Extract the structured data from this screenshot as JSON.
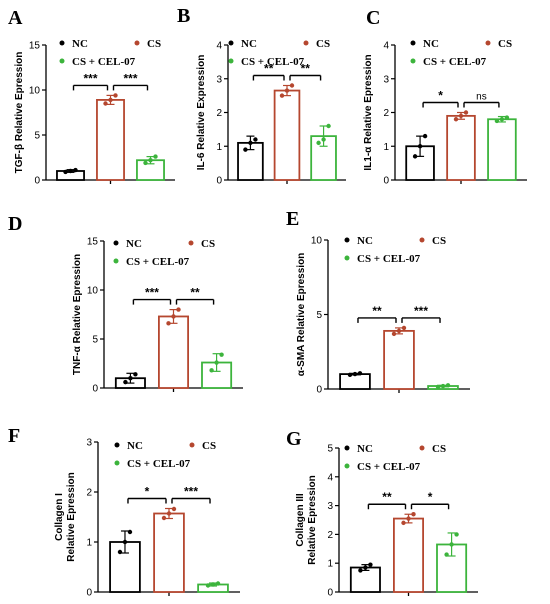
{
  "colors": {
    "NC": "#000000",
    "CS": "#b5472f",
    "CEL": "#3cb43c",
    "bar_fill": "#ffffff",
    "axis": "#000000"
  },
  "chart_data": [
    {
      "panel": "A",
      "type": "bar",
      "ylabel": "TGF-β Relative Epression",
      "ylim": [
        0,
        15
      ],
      "yticks": [
        0,
        5,
        10,
        15
      ],
      "legend": [
        "NC",
        "CS",
        "CS + CEL-07"
      ],
      "series": [
        {
          "name": "NC",
          "value": 1.0,
          "error": 0.15,
          "points": [
            0.9,
            1.0,
            1.1
          ]
        },
        {
          "name": "CS",
          "value": 8.9,
          "error": 0.5,
          "points": [
            8.5,
            8.9,
            9.4
          ]
        },
        {
          "name": "CS + CEL-07",
          "value": 2.2,
          "error": 0.4,
          "points": [
            1.9,
            2.2,
            2.6
          ]
        }
      ],
      "significance": [
        {
          "from": 0,
          "to": 1,
          "label": "***"
        },
        {
          "from": 1,
          "to": 2,
          "label": "***"
        }
      ]
    },
    {
      "panel": "B",
      "type": "bar",
      "ylabel": "IL-6 Relative Expression",
      "ylim": [
        0,
        4
      ],
      "yticks": [
        0,
        1,
        2,
        3,
        4
      ],
      "legend": [
        "NC",
        "CS",
        "CS + CEL-07"
      ],
      "series": [
        {
          "name": "NC",
          "value": 1.1,
          "error": 0.2,
          "points": [
            0.9,
            1.1,
            1.2
          ]
        },
        {
          "name": "CS",
          "value": 2.65,
          "error": 0.15,
          "points": [
            2.5,
            2.65,
            2.8
          ]
        },
        {
          "name": "CS + CEL-07",
          "value": 1.3,
          "error": 0.3,
          "points": [
            1.1,
            1.2,
            1.6
          ]
        }
      ],
      "significance": [
        {
          "from": 0,
          "to": 1,
          "label": "**"
        },
        {
          "from": 1,
          "to": 2,
          "label": "**"
        }
      ]
    },
    {
      "panel": "C",
      "type": "bar",
      "ylabel": "IL1-α Relative Epression",
      "ylim": [
        0,
        4
      ],
      "yticks": [
        0,
        1,
        2,
        3,
        4
      ],
      "legend": [
        "NC",
        "CS",
        "CS + CEL-07"
      ],
      "series": [
        {
          "name": "NC",
          "value": 1.0,
          "error": 0.3,
          "points": [
            0.7,
            1.0,
            1.3
          ]
        },
        {
          "name": "CS",
          "value": 1.9,
          "error": 0.1,
          "points": [
            1.8,
            1.9,
            2.0
          ]
        },
        {
          "name": "CS + CEL-07",
          "value": 1.8,
          "error": 0.08,
          "points": [
            1.75,
            1.8,
            1.85
          ]
        }
      ],
      "significance": [
        {
          "from": 0,
          "to": 1,
          "label": "*"
        },
        {
          "from": 1,
          "to": 2,
          "label": "ns"
        }
      ]
    },
    {
      "panel": "D",
      "type": "bar",
      "ylabel": "TNF-α Relative Epression",
      "ylim": [
        0,
        15
      ],
      "yticks": [
        0,
        5,
        10,
        15
      ],
      "legend": [
        "NC",
        "CS",
        "CS + CEL-07"
      ],
      "series": [
        {
          "name": "NC",
          "value": 1.0,
          "error": 0.5,
          "points": [
            0.6,
            1.0,
            1.4
          ]
        },
        {
          "name": "CS",
          "value": 7.3,
          "error": 0.7,
          "points": [
            6.6,
            7.3,
            8.0
          ]
        },
        {
          "name": "CS + CEL-07",
          "value": 2.6,
          "error": 0.9,
          "points": [
            1.8,
            2.6,
            3.4
          ]
        }
      ],
      "significance": [
        {
          "from": 0,
          "to": 1,
          "label": "***"
        },
        {
          "from": 1,
          "to": 2,
          "label": "**"
        }
      ]
    },
    {
      "panel": "E",
      "type": "bar",
      "ylabel": "α-SMA Relative Epression",
      "ylim": [
        0,
        10
      ],
      "yticks": [
        0,
        5,
        10
      ],
      "legend": [
        "NC",
        "CS",
        "CS + CEL-07"
      ],
      "series": [
        {
          "name": "NC",
          "value": 1.0,
          "error": 0.05,
          "points": [
            0.95,
            1.0,
            1.05
          ]
        },
        {
          "name": "CS",
          "value": 3.9,
          "error": 0.2,
          "points": [
            3.7,
            3.9,
            4.1
          ]
        },
        {
          "name": "CS + CEL-07",
          "value": 0.2,
          "error": 0.05,
          "points": [
            0.15,
            0.2,
            0.25
          ]
        }
      ],
      "significance": [
        {
          "from": 0,
          "to": 1,
          "label": "**"
        },
        {
          "from": 1,
          "to": 2,
          "label": "***"
        }
      ]
    },
    {
      "panel": "F",
      "type": "bar",
      "ylabel": "Collagen I Relative Epression",
      "ylim": [
        0,
        3
      ],
      "yticks": [
        0,
        1,
        2,
        3
      ],
      "legend": [
        "NC",
        "CS",
        "CS + CEL-07"
      ],
      "series": [
        {
          "name": "NC",
          "value": 1.0,
          "error": 0.22,
          "points": [
            0.8,
            1.0,
            1.2
          ]
        },
        {
          "name": "CS",
          "value": 1.57,
          "error": 0.1,
          "points": [
            1.48,
            1.57,
            1.66
          ]
        },
        {
          "name": "CS + CEL-07",
          "value": 0.15,
          "error": 0.03,
          "points": [
            0.13,
            0.15,
            0.17
          ]
        }
      ],
      "significance": [
        {
          "from": 0,
          "to": 1,
          "label": "*"
        },
        {
          "from": 1,
          "to": 2,
          "label": "***"
        }
      ]
    },
    {
      "panel": "G",
      "type": "bar",
      "ylabel": "Collagen III Relative Epression",
      "ylim": [
        0,
        5
      ],
      "yticks": [
        0,
        1,
        2,
        3,
        4,
        5
      ],
      "legend": [
        "NC",
        "CS",
        "CS + CEL-07"
      ],
      "series": [
        {
          "name": "NC",
          "value": 0.85,
          "error": 0.1,
          "points": [
            0.75,
            0.85,
            0.95
          ]
        },
        {
          "name": "CS",
          "value": 2.55,
          "error": 0.15,
          "points": [
            2.4,
            2.55,
            2.7
          ]
        },
        {
          "name": "CS + CEL-07",
          "value": 1.65,
          "error": 0.4,
          "points": [
            1.3,
            1.65,
            2.0
          ]
        }
      ],
      "significance": [
        {
          "from": 0,
          "to": 1,
          "label": "**"
        },
        {
          "from": 1,
          "to": 2,
          "label": "*"
        }
      ]
    }
  ]
}
